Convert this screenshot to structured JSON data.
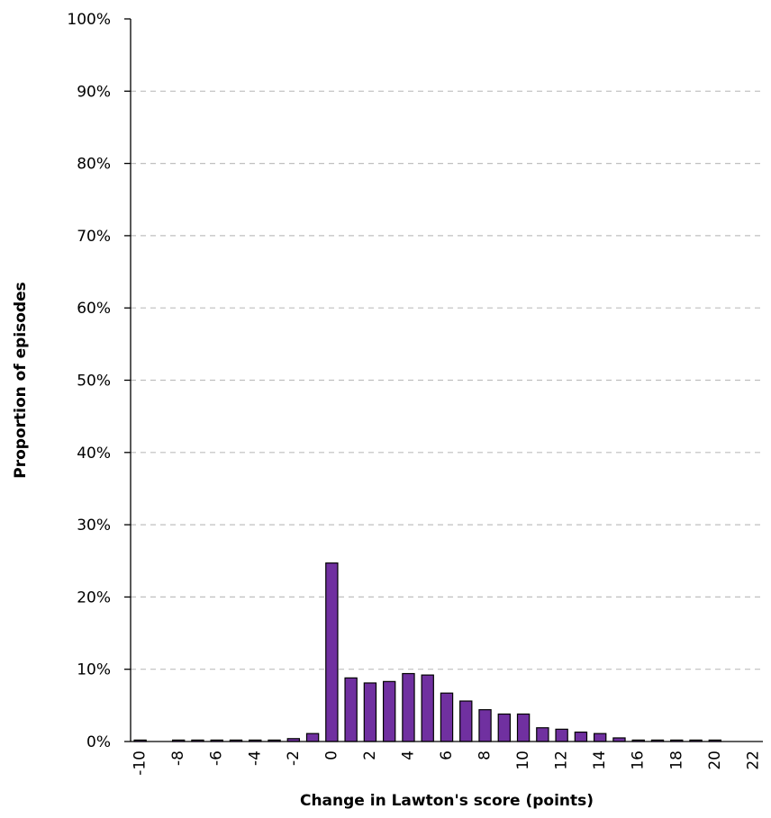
{
  "chart_data": {
    "type": "bar",
    "title": "",
    "xlabel": "Change in Lawton's score (points)",
    "ylabel": "Proportion of episodes",
    "ylim": [
      0,
      100
    ],
    "y_tick_labels": [
      "0%",
      "10%",
      "20%",
      "30%",
      "40%",
      "50%",
      "60%",
      "70%",
      "80%",
      "90%",
      "100%"
    ],
    "x_tick_labels": [
      "-10",
      "-8",
      "-6",
      "-4",
      "-2",
      "0",
      "2",
      "4",
      "6",
      "8",
      "10",
      "12",
      "14",
      "16",
      "18",
      "20",
      "22"
    ],
    "grid": true,
    "bar_color": "#7030a0",
    "categories": [
      -10,
      -9,
      -8,
      -7,
      -6,
      -5,
      -4,
      -3,
      -2,
      -1,
      0,
      1,
      2,
      3,
      4,
      5,
      6,
      7,
      8,
      9,
      10,
      11,
      12,
      13,
      14,
      15,
      16,
      17,
      18,
      19,
      20,
      21,
      22
    ],
    "values": [
      0.2,
      0,
      0.2,
      0.2,
      0.2,
      0.2,
      0.2,
      0.2,
      0.4,
      1.1,
      24.7,
      8.8,
      8.1,
      8.3,
      9.4,
      9.2,
      6.7,
      5.6,
      4.4,
      3.8,
      3.8,
      1.9,
      1.7,
      1.3,
      1.1,
      0.5,
      0.2,
      0.2,
      0.2,
      0.2,
      0.2,
      0,
      0
    ]
  }
}
